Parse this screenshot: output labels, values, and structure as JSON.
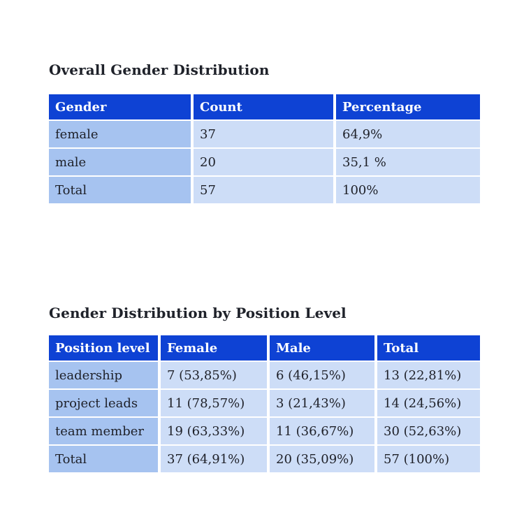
{
  "colors": {
    "header_bg": "#0e42d4",
    "header_text": "#ffffff",
    "col1_bg": "#a6c3f0",
    "cell_bg": "#cdddf7",
    "cell_text": "#1e2028",
    "title_text": "#1f222a",
    "page_bg": "#ffffff"
  },
  "sections": [
    {
      "title": "Overall Gender Distribution",
      "table": {
        "headers": [
          "Gender",
          "Count",
          "Percentage"
        ],
        "rows": [
          [
            "female",
            "37",
            "64,9%"
          ],
          [
            "male",
            "20",
            "35,1 %"
          ],
          [
            "Total",
            "57",
            "100%"
          ]
        ]
      }
    },
    {
      "title": "Gender Distribution by Position Level",
      "table": {
        "headers": [
          "Position level",
          "Female",
          "Male",
          "Total"
        ],
        "rows": [
          [
            "leadership",
            "7 (53,85%)",
            "6 (46,15%)",
            "13 (22,81%)"
          ],
          [
            "project leads",
            "11 (78,57%)",
            "3 (21,43%)",
            "14 (24,56%)"
          ],
          [
            "team member",
            "19 (63,33%)",
            "11 (36,67%)",
            "30 (52,63%)"
          ],
          [
            "Total",
            "37 (64,91%)",
            "20 (35,09%)",
            "57 (100%)"
          ]
        ]
      }
    }
  ]
}
